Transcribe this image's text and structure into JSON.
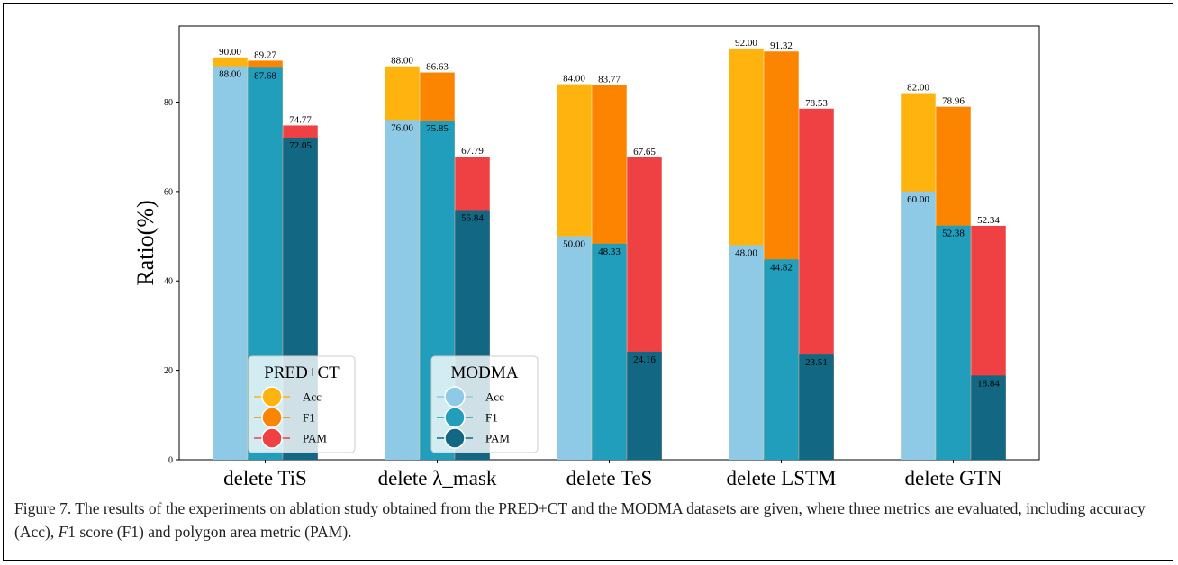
{
  "chart_data": {
    "type": "bar",
    "ylabel": "Ratio(%)",
    "ylim": [
      0,
      97
    ],
    "yticks": [
      0,
      20,
      40,
      60,
      80
    ],
    "categories": [
      "delete TiS",
      "delete λ_mask",
      "delete TeS",
      "delete LSTM",
      "delete GTN"
    ],
    "series": [
      {
        "name": "Acc",
        "group": "PRED+CT",
        "color": "#FFB30F",
        "values": [
          90.0,
          88.0,
          84.0,
          92.0,
          82.0
        ],
        "labels": [
          "90.00",
          "88.00",
          "84.00",
          "92.00",
          "82.00"
        ]
      },
      {
        "name": "F1",
        "group": "PRED+CT",
        "color": "#FB8500",
        "values": [
          89.27,
          86.63,
          83.77,
          91.32,
          78.96
        ],
        "labels": [
          "89.27",
          "86.63",
          "83.77",
          "91.32",
          "78.96"
        ]
      },
      {
        "name": "PAM",
        "group": "PRED+CT",
        "color": "#EF4043",
        "values": [
          74.77,
          67.79,
          67.65,
          78.53,
          52.34
        ],
        "labels": [
          "74.77",
          "67.79",
          "67.65",
          "78.53",
          "52.34"
        ]
      },
      {
        "name": "Acc",
        "group": "MODMA",
        "color": "#8ECAE6",
        "values": [
          88.0,
          76.0,
          50.0,
          48.0,
          60.0
        ],
        "labels": [
          "88.00",
          "76.00",
          "50.00",
          "48.00",
          "60.00"
        ]
      },
      {
        "name": "F1",
        "group": "MODMA",
        "color": "#219EBC",
        "values": [
          87.68,
          75.85,
          48.33,
          44.82,
          52.38
        ],
        "labels": [
          "87.68",
          "75.85",
          "48.33",
          "44.82",
          "52.38"
        ]
      },
      {
        "name": "PAM",
        "group": "MODMA",
        "color": "#126782",
        "values": [
          72.05,
          55.84,
          24.16,
          23.51,
          18.84
        ],
        "labels": [
          "72.05",
          "55.84",
          "24.16",
          "23.51",
          "18.84"
        ]
      }
    ],
    "legends": [
      {
        "title": "PRED+CT",
        "items": [
          "Acc",
          "F1",
          "PAM"
        ],
        "colors": [
          "#FFB30F",
          "#FB8500",
          "#EF4043"
        ]
      },
      {
        "title": "MODMA",
        "items": [
          "Acc",
          "F1",
          "PAM"
        ],
        "colors": [
          "#8ECAE6",
          "#219EBC",
          "#126782"
        ]
      }
    ],
    "grid": false,
    "legend_position": "lower-left"
  },
  "caption": {
    "prefix": "Figure 7. The results of the experiments on ablation study obtained from the PRED+CT and the MODMA datasets are given, where three metrics are evaluated, including accuracy (Acc), ",
    "italic": "F",
    "suffix": "1 score (F1) and polygon area metric (PAM)."
  }
}
